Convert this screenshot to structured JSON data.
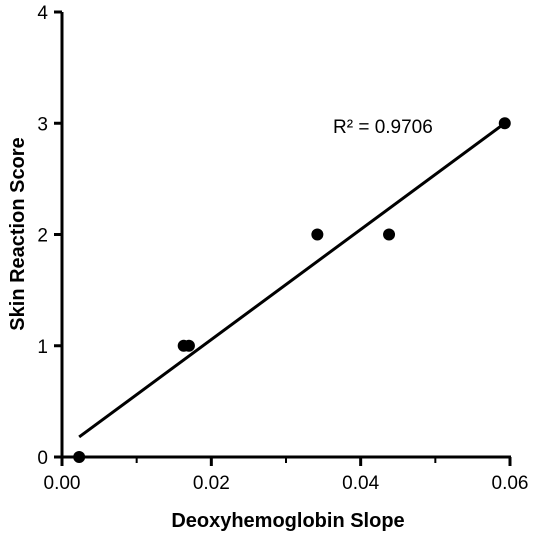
{
  "chart_data": {
    "type": "scatter",
    "title": "",
    "xlabel": "Deoxyhemoglobin Slope",
    "ylabel": "Skin Reaction Score",
    "xlim": [
      0.0,
      0.06
    ],
    "ylim": [
      0,
      4
    ],
    "x_ticks": [
      0.0,
      0.02,
      0.04,
      0.06
    ],
    "x_tick_labels": [
      "0.00",
      "0.02",
      "0.04",
      "0.06"
    ],
    "y_ticks": [
      0,
      1,
      2,
      3,
      4
    ],
    "y_tick_labels": [
      "0",
      "1",
      "2",
      "3",
      "4"
    ],
    "grid": false,
    "points": [
      {
        "x": 0.0023,
        "y": 0
      },
      {
        "x": 0.0163,
        "y": 1
      },
      {
        "x": 0.017,
        "y": 1
      },
      {
        "x": 0.0342,
        "y": 2
      },
      {
        "x": 0.0438,
        "y": 2
      },
      {
        "x": 0.0593,
        "y": 3
      }
    ],
    "fit_line": {
      "x0": 0.0023,
      "y0": 0.18,
      "x1": 0.0593,
      "y1": 3.0
    },
    "annotation": "R² = 0.9706",
    "colors": {
      "points": "#000000",
      "line": "#000000",
      "axes": "#000000"
    }
  }
}
